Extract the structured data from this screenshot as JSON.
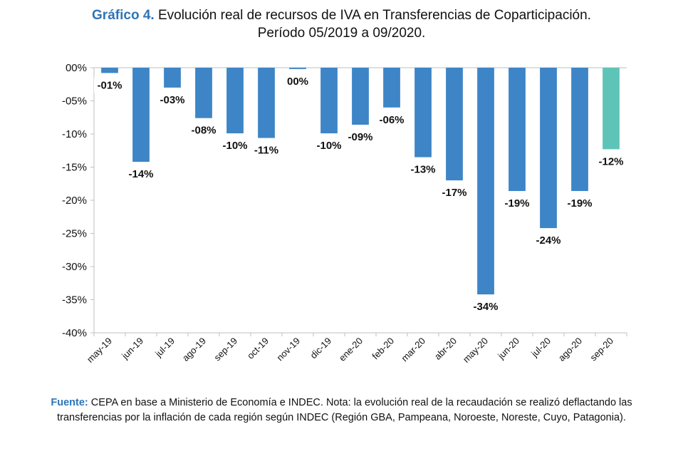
{
  "title": {
    "label": "Gráfico 4.",
    "line1": "Evolución real de recursos de IVA en Transferencias de Coparticipación.",
    "line2": "Período 05/2019 a 09/2020."
  },
  "source": {
    "label": "Fuente:",
    "text": "CEPA en base a Ministerio de Economía e INDEC. Nota: la evolución real de la recaudación se realizó deflactando las transferencias por la inflación de cada región según INDEC (Región GBA, Pampeana, Noroeste, Noreste, Cuyo, Patagonia)."
  },
  "chart_data": {
    "type": "bar",
    "categories": [
      "may-19",
      "jun-19",
      "jul-19",
      "ago-19",
      "sep-19",
      "oct-19",
      "nov-19",
      "dic-19",
      "ene-20",
      "feb-20",
      "mar-20",
      "abr-20",
      "may-20",
      "jun-20",
      "jul-20",
      "ago-20",
      "sep-20"
    ],
    "values": [
      -0.8,
      -14.2,
      -3.0,
      -7.6,
      -9.9,
      -10.6,
      -0.2,
      -9.9,
      -8.6,
      -6.0,
      -13.5,
      -17.0,
      -34.2,
      -18.6,
      -24.2,
      -18.6,
      -12.3
    ],
    "data_labels": [
      "-01%",
      "-14%",
      "-03%",
      "-08%",
      "-10%",
      "-11%",
      "00%",
      "-10%",
      "-09%",
      "-06%",
      "-13%",
      "-17%",
      "-34%",
      "-19%",
      "-24%",
      "-19%",
      "-12%"
    ],
    "ylim": [
      -40,
      0
    ],
    "yticks": [
      0,
      -5,
      -10,
      -15,
      -20,
      -25,
      -30,
      -35,
      -40
    ],
    "ytick_labels": [
      "00%",
      "-05%",
      "-10%",
      "-15%",
      "-20%",
      "-25%",
      "-30%",
      "-35%",
      "-40%"
    ],
    "colors": {
      "default": "#3d85c6",
      "highlight": "#5fc4b8"
    },
    "highlight_index": 16,
    "grid": false
  }
}
